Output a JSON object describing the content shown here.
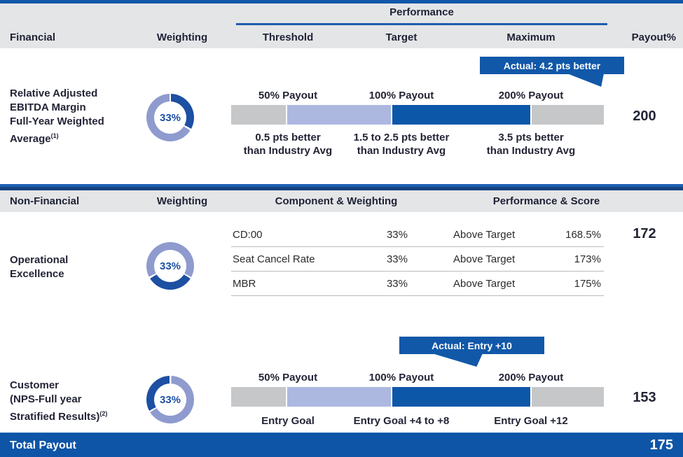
{
  "colors": {
    "accent_blue": "#1158a9",
    "scale_gray": "#c6c7c9",
    "scale_lavender": "#adb8e0",
    "scale_blue": "#0d57a9",
    "donut_light": "#8f9bce",
    "donut_dark": "#1d4fa3",
    "header_band_gray": "#e4e5e7"
  },
  "financial": {
    "header": {
      "performance": "Performance",
      "financial": "Financial",
      "weighting": "Weighting",
      "threshold": "Threshold",
      "target": "Target",
      "maximum": "Maximum",
      "payout": "Payout%"
    },
    "row": {
      "label_lines": [
        "Relative Adjusted",
        "EBITDA Margin",
        "Full-Year Weighted",
        "Average"
      ],
      "superscript": "(1)",
      "weighting": "33%",
      "callout": "Actual: 4.2 pts better",
      "top_labels": [
        "50% Payout",
        "100% Payout",
        "200% Payout"
      ],
      "bottom_labels": [
        [
          "0.5 pts better",
          "than Industry Avg"
        ],
        [
          "1.5 to 2.5 pts better",
          "than Industry Avg"
        ],
        [
          "3.5 pts better",
          "than Industry Avg"
        ]
      ],
      "payout": "200"
    }
  },
  "nonfinancial": {
    "header": {
      "nonfinancial": "Non-Financial",
      "weighting": "Weighting",
      "component": "Component & Weighting",
      "performance": "Performance & Score"
    },
    "operational": {
      "label_lines": [
        "Operational",
        "Excellence"
      ],
      "weighting": "33%",
      "components": [
        {
          "name": "CD:00",
          "weight": "33%",
          "performance": "Above Target",
          "score": "168.5%"
        },
        {
          "name": "Seat Cancel Rate",
          "weight": "33%",
          "performance": "Above Target",
          "score": "173%"
        },
        {
          "name": "MBR",
          "weight": "33%",
          "performance": "Above Target",
          "score": "175%"
        }
      ],
      "payout": "172"
    },
    "customer": {
      "label_lines": [
        "Customer",
        "(NPS-Full year",
        "Stratified Results)"
      ],
      "superscript": "(2)",
      "weighting": "33%",
      "callout": "Actual: Entry +10",
      "top_labels": [
        "50% Payout",
        "100% Payout",
        "200% Payout"
      ],
      "bottom_labels": [
        "Entry Goal",
        "Entry Goal +4 to +8",
        "Entry Goal +12"
      ],
      "payout": "153"
    }
  },
  "total": {
    "label": "Total Payout",
    "value": "175"
  }
}
